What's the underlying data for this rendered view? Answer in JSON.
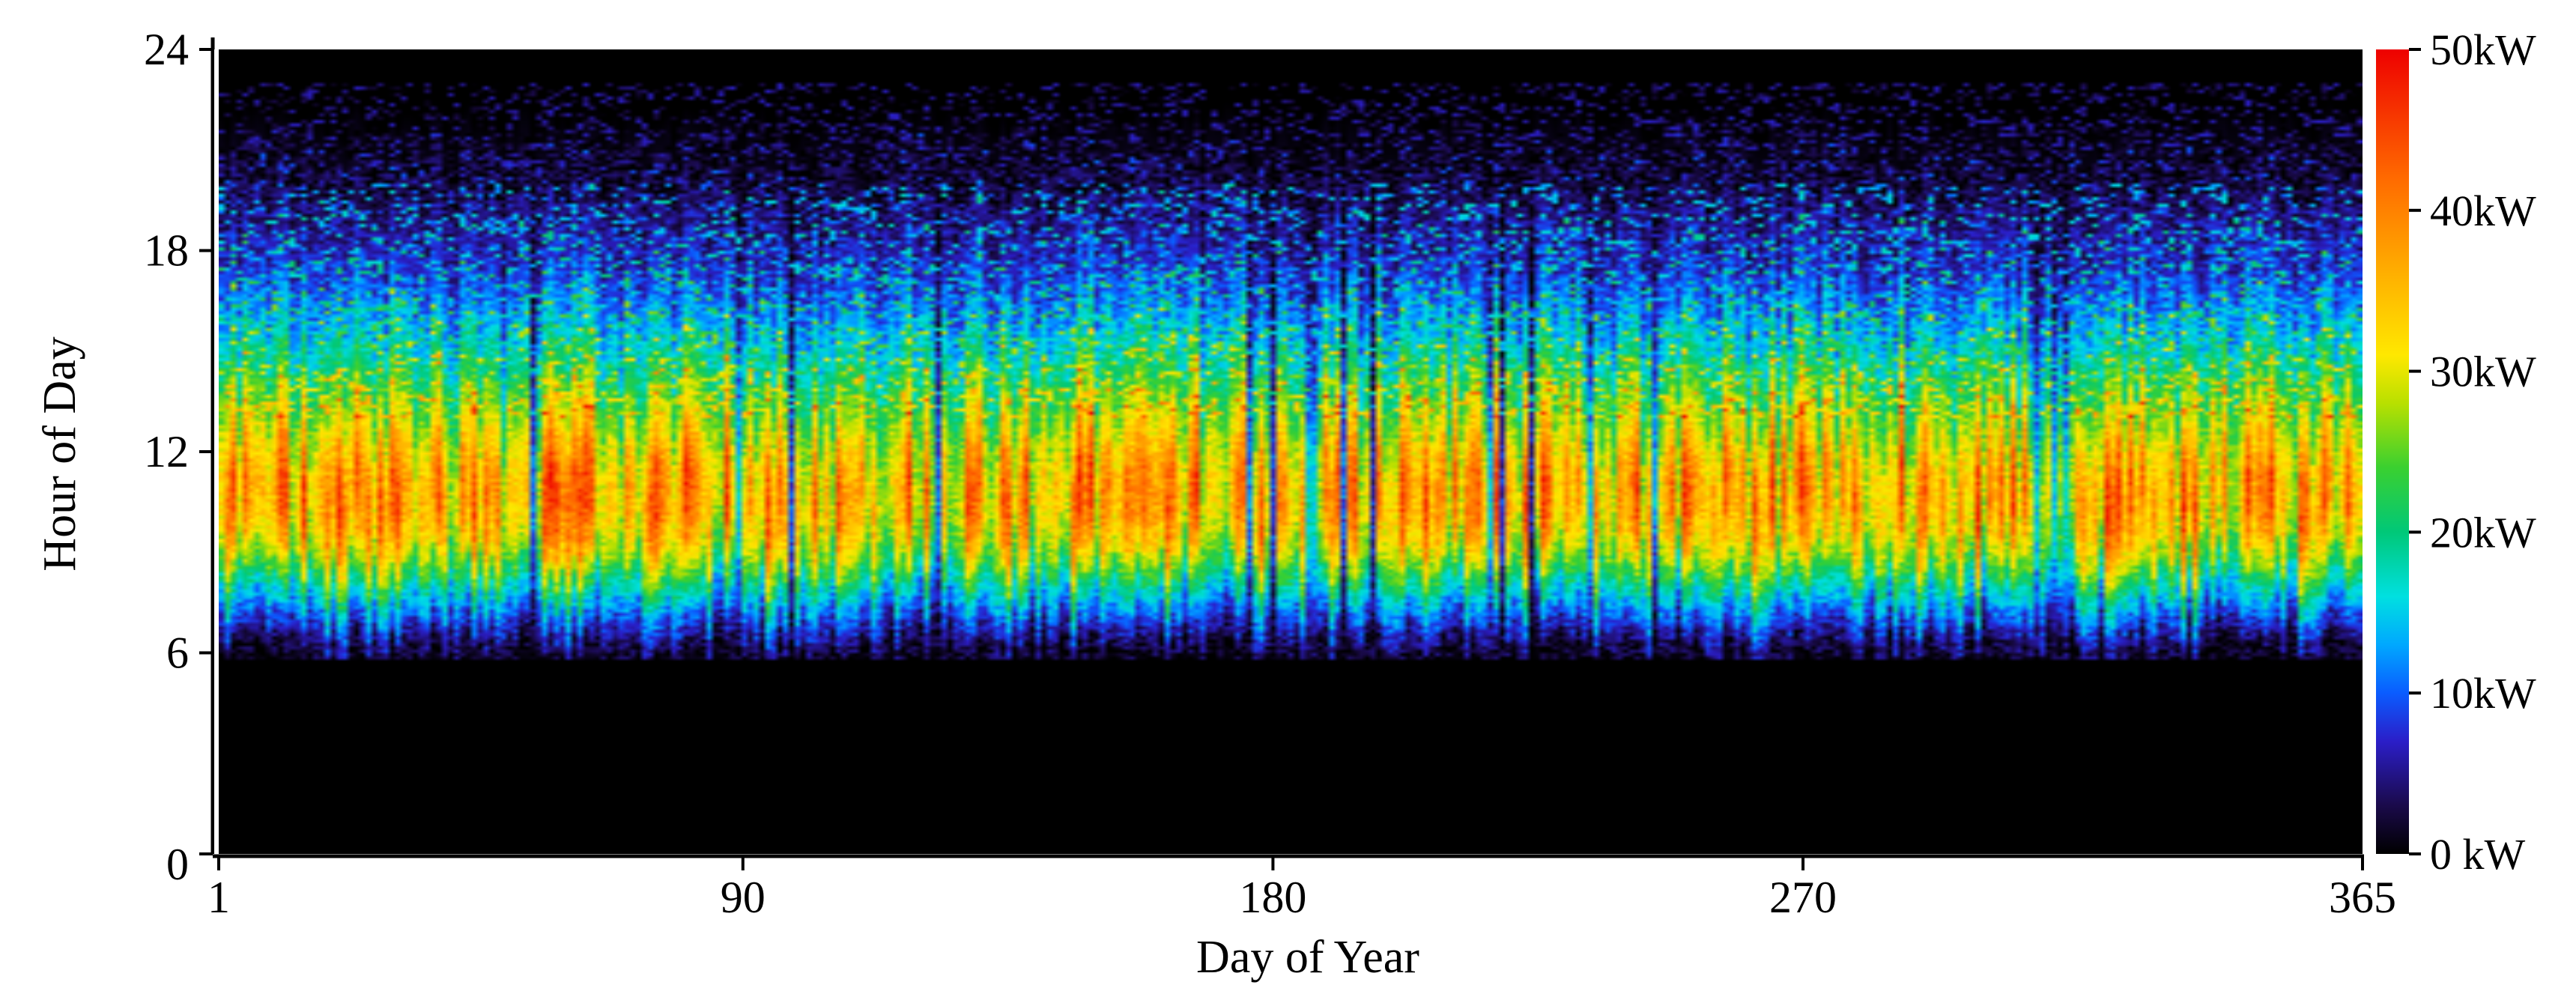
{
  "chart_data": {
    "type": "heatmap",
    "title": "",
    "xlabel": "Day of Year",
    "ylabel": "Hour of Day",
    "xlim": [
      1,
      365
    ],
    "ylim": [
      0,
      24
    ],
    "x_ticks": [
      1,
      90,
      180,
      270,
      365
    ],
    "x_tick_labels": [
      "1",
      "90",
      "180",
      "270",
      "365"
    ],
    "y_ticks": [
      0,
      6,
      12,
      18,
      24
    ],
    "y_tick_labels": [
      "0",
      "6",
      "12",
      "18",
      "24"
    ],
    "colorbar": {
      "range": [
        0,
        50
      ],
      "unit": "kW",
      "ticks": [
        0,
        10,
        20,
        30,
        40,
        50
      ],
      "tick_labels": [
        "0 kW",
        "10kW",
        "20kW",
        "30kW",
        "40kW",
        "50kW"
      ],
      "colormap": [
        {
          "value": 0,
          "color": "#000000"
        },
        {
          "value": 3,
          "color": "#1a0a4a"
        },
        {
          "value": 7,
          "color": "#2b1ec8"
        },
        {
          "value": 10,
          "color": "#0a5cff"
        },
        {
          "value": 13,
          "color": "#00a8ff"
        },
        {
          "value": 16,
          "color": "#00e0e0"
        },
        {
          "value": 20,
          "color": "#00c878"
        },
        {
          "value": 24,
          "color": "#3ad030"
        },
        {
          "value": 28,
          "color": "#b8e000"
        },
        {
          "value": 31,
          "color": "#ffe800"
        },
        {
          "value": 36,
          "color": "#ffb000"
        },
        {
          "value": 42,
          "color": "#ff6a00"
        },
        {
          "value": 50,
          "color": "#ee0000"
        }
      ]
    },
    "hourly_profile": {
      "hours": [
        0,
        1,
        2,
        3,
        4,
        5,
        6,
        7,
        8,
        9,
        10,
        11,
        12,
        13,
        14,
        15,
        16,
        17,
        18,
        19,
        20,
        21,
        22,
        23,
        24
      ],
      "typical_power_kw": [
        0,
        0,
        0,
        0,
        0,
        0,
        2,
        11,
        22,
        34,
        40,
        41,
        37,
        31,
        25,
        19,
        14,
        10,
        7,
        5,
        2,
        1,
        0,
        0,
        0
      ]
    },
    "grid": false,
    "legend": "colorbar-right"
  }
}
